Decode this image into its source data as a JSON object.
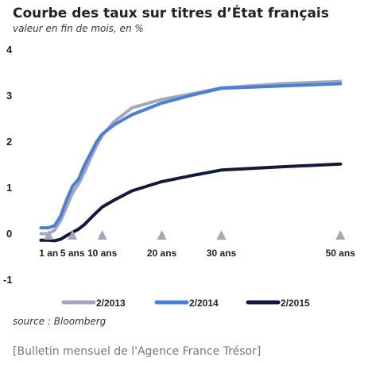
{
  "chart_data": {
    "type": "line",
    "title": "Courbe des taux sur titres d’État français",
    "subtitle": "valeur en fin de mois, en %",
    "xlabel": "",
    "ylabel": "",
    "ylim": [
      -1,
      4
    ],
    "yticks": [
      "4",
      "3",
      "2",
      "1",
      "0",
      "-1"
    ],
    "xlim": [
      -0.5,
      50.5
    ],
    "x_tick_marks": [
      {
        "x": 1,
        "label": "1 an"
      },
      {
        "x": 5,
        "label": "5 ans"
      },
      {
        "x": 10,
        "label": "10 ans"
      },
      {
        "x": 20,
        "label": "20 ans"
      },
      {
        "x": 30,
        "label": "30 ans"
      },
      {
        "x": 50,
        "label": "50 ans"
      }
    ],
    "grid": false,
    "legend_position": "bottom",
    "series": [
      {
        "name": "2/2013",
        "color": "#a3a7b8",
        "x": [
          -0.3,
          1,
          2,
          3,
          4,
          5,
          6,
          7,
          8,
          9,
          10,
          12,
          15,
          20,
          25,
          30,
          40,
          50
        ],
        "y": [
          0.02,
          0.02,
          0.1,
          0.3,
          0.6,
          0.9,
          1.1,
          1.35,
          1.65,
          1.92,
          2.15,
          2.45,
          2.75,
          2.93,
          3.05,
          3.18,
          3.27,
          3.32
        ]
      },
      {
        "name": "2/2014",
        "color": "#4a7fd6",
        "x": [
          -0.3,
          1,
          2,
          3,
          4,
          5,
          6,
          7,
          8,
          9,
          10,
          12,
          15,
          20,
          25,
          30,
          40,
          50
        ],
        "y": [
          0.15,
          0.15,
          0.2,
          0.4,
          0.75,
          1.05,
          1.2,
          1.5,
          1.75,
          2.0,
          2.18,
          2.38,
          2.6,
          2.85,
          3.02,
          3.17,
          3.22,
          3.27
        ]
      },
      {
        "name": "2/2015",
        "color": "#111a3a",
        "x": [
          -0.3,
          1,
          2,
          3,
          4,
          5,
          6,
          7,
          8,
          9,
          10,
          12,
          15,
          20,
          25,
          30,
          40,
          50
        ],
        "y": [
          -0.12,
          -0.12,
          -0.13,
          -0.1,
          -0.02,
          0.05,
          0.12,
          0.22,
          0.35,
          0.48,
          0.6,
          0.75,
          0.95,
          1.15,
          1.28,
          1.4,
          1.47,
          1.53
        ]
      }
    ]
  },
  "source": "source : Bloomberg",
  "footer": "[Bulletin mensuel de l'Agence France Trésor]"
}
